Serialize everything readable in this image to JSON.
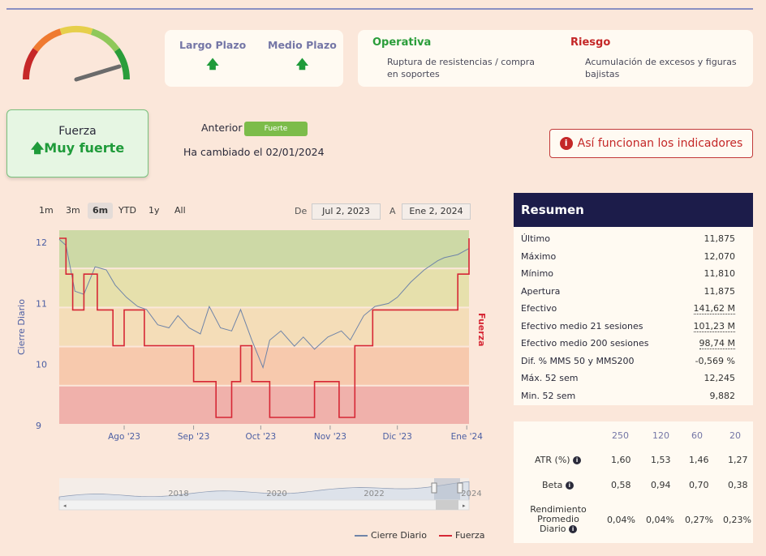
{
  "gauge": {
    "colors": [
      "#c62828",
      "#ef7a30",
      "#e6cf4b",
      "#8fc85a",
      "#2a9d3a"
    ],
    "needle_color": "#6b6b6b"
  },
  "terms": [
    {
      "label": "Largo Plazo",
      "arrow": "🡅"
    },
    {
      "label": "Medio Plazo",
      "arrow": "🡅"
    }
  ],
  "operativa": {
    "title": "Operativa",
    "desc_line1": "Ruptura de resistencias / compra",
    "desc_line2": "en soportes",
    "color": "#2a9d3a"
  },
  "riesgo": {
    "title": "Riesgo",
    "desc_line1": "Acumulación de excesos y figuras",
    "desc_line2": "bajistas",
    "color": "#c42727"
  },
  "fuerza": {
    "label": "Fuerza",
    "arrow": "🡅",
    "value": "Muy fuerte"
  },
  "anterior": {
    "label": "Anterior",
    "badge": "Fuerte"
  },
  "changed": "Ha cambiado el 02/01/2024",
  "info_button": {
    "icon": "i",
    "label": "Así funcionan los indicadores"
  },
  "range_buttons": [
    "1m",
    "3m",
    "6m",
    "YTD",
    "1y",
    "All"
  ],
  "range_active": "6m",
  "date_range": {
    "from_label": "De",
    "from": "Jul 2, 2023",
    "to_label": "A",
    "to": "Ene 2, 2024"
  },
  "chart_data": {
    "type": "line",
    "ylabel": "Cierre Diario",
    "y2label": "Fuerza",
    "ylim": [
      9,
      12.2
    ],
    "yticks": [
      "12",
      "11",
      "10",
      "9"
    ],
    "xticks": [
      "Ago '23",
      "Sep '23",
      "Oct '23",
      "Nov '23",
      "Dic '23",
      "Ene '24"
    ],
    "bands": [
      "#cdd9a6",
      "#e6e0ac",
      "#f4ddb8",
      "#f7c9ad",
      "#f0b1ab"
    ],
    "series": [
      {
        "name": "Cierre Diario",
        "color": "#6f84a8",
        "x": [
          "2023-07-03",
          "2023-07-06",
          "2023-07-10",
          "2023-07-14",
          "2023-07-19",
          "2023-07-24",
          "2023-07-28",
          "2023-08-02",
          "2023-08-07",
          "2023-08-11",
          "2023-08-16",
          "2023-08-21",
          "2023-08-25",
          "2023-08-30",
          "2023-09-04",
          "2023-09-08",
          "2023-09-13",
          "2023-09-18",
          "2023-09-22",
          "2023-09-27",
          "2023-10-02",
          "2023-10-05",
          "2023-10-10",
          "2023-10-16",
          "2023-10-20",
          "2023-10-25",
          "2023-10-31",
          "2023-11-06",
          "2023-11-10",
          "2023-11-16",
          "2023-11-21",
          "2023-11-27",
          "2023-12-01",
          "2023-12-07",
          "2023-12-13",
          "2023-12-19",
          "2023-12-22",
          "2023-12-28",
          "2024-01-02"
        ],
        "values": [
          12.05,
          11.95,
          11.2,
          11.15,
          11.6,
          11.55,
          11.3,
          11.1,
          10.95,
          10.9,
          10.65,
          10.6,
          10.8,
          10.6,
          10.5,
          10.95,
          10.6,
          10.55,
          10.9,
          10.4,
          9.95,
          10.4,
          10.55,
          10.3,
          10.45,
          10.25,
          10.45,
          10.55,
          10.4,
          10.8,
          10.95,
          11.0,
          11.1,
          11.35,
          11.55,
          11.7,
          11.75,
          11.8,
          11.9
        ]
      },
      {
        "name": "Fuerza",
        "color": "#d62735",
        "x": [
          "2023-07-03",
          "2023-07-06",
          "2023-07-09",
          "2023-07-14",
          "2023-07-20",
          "2023-07-27",
          "2023-08-01",
          "2023-08-10",
          "2023-08-22",
          "2023-09-01",
          "2023-09-07",
          "2023-09-11",
          "2023-09-18",
          "2023-09-22",
          "2023-09-27",
          "2023-10-05",
          "2023-10-12",
          "2023-10-25",
          "2023-11-05",
          "2023-11-12",
          "2023-11-20",
          "2023-12-02",
          "2023-12-20",
          "2023-12-28",
          "2024-01-02"
        ],
        "values": [
          5,
          4,
          3,
          4,
          3,
          2,
          3,
          2,
          2,
          1,
          1,
          0,
          1,
          2,
          1,
          0,
          0,
          1,
          0,
          2,
          3,
          3,
          3,
          4,
          5
        ]
      }
    ]
  },
  "navigator": {
    "years": [
      "2018",
      "2020",
      "2022",
      "2024"
    ]
  },
  "legend": [
    {
      "label": "Cierre Diario",
      "color": "#6f84a8"
    },
    {
      "label": "Fuerza",
      "color": "#d62735"
    }
  ],
  "resumen": {
    "title": "Resumen",
    "rows": [
      {
        "label": "Último",
        "value": "11,875"
      },
      {
        "label": "Máximo",
        "value": "12,070"
      },
      {
        "label": "Mínimo",
        "value": "11,810"
      },
      {
        "label": "Apertura",
        "value": "11,875"
      },
      {
        "label": "Efectivo",
        "value": "141,62 M"
      },
      {
        "label": "Efectivo medio 21 sesiones",
        "value": "101,23 M"
      },
      {
        "label": "Efectivo medio 200 sesiones",
        "value": "98,74 M"
      },
      {
        "label": "Dif. % MMS 50 y MMS200",
        "value": "-0,569 %"
      },
      {
        "label": "Máx. 52 sem",
        "value": "12,245"
      },
      {
        "label": "Min. 52 sem",
        "value": "9,882"
      }
    ]
  },
  "stats": {
    "headers": [
      "250",
      "120",
      "60",
      "20"
    ],
    "rows": [
      {
        "label": "ATR (%)",
        "values": [
          "1,60",
          "1,53",
          "1,46",
          "1,27"
        ]
      },
      {
        "label": "Beta",
        "values": [
          "0,58",
          "0,94",
          "0,70",
          "0,38"
        ]
      },
      {
        "label_lines": [
          "Rendimiento",
          "Promedio",
          "Diario"
        ],
        "values": [
          "0,04%",
          "0,04%",
          "0,27%",
          "0,23%"
        ]
      }
    ]
  }
}
